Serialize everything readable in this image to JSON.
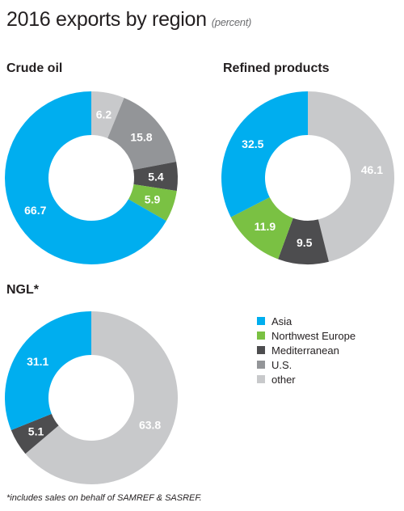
{
  "title": "2016 exports by region",
  "title_unit": "(percent)",
  "colors": {
    "Asia": "#00aeef",
    "Northwest Europe": "#7ac143",
    "Mediterranean": "#4d4d4f",
    "U.S.": "#939598",
    "other": "#c8c9cb"
  },
  "legend": [
    "Asia",
    "Northwest Europe",
    "Mediterranean",
    "U.S.",
    "other"
  ],
  "chart_data": [
    {
      "type": "pie",
      "title": "Crude oil",
      "categories": [
        "other",
        "U.S.",
        "Mediterranean",
        "Northwest Europe",
        "Asia"
      ],
      "values": [
        6.2,
        15.8,
        5.4,
        5.9,
        66.7
      ]
    },
    {
      "type": "pie",
      "title": "Refined products",
      "categories": [
        "other",
        "Mediterranean",
        "Northwest Europe",
        "Asia"
      ],
      "values": [
        46.1,
        9.5,
        11.9,
        32.5
      ]
    },
    {
      "type": "pie",
      "title": "NGL*",
      "categories": [
        "other",
        "Mediterranean",
        "Asia"
      ],
      "values": [
        63.8,
        5.1,
        31.1
      ]
    }
  ],
  "footnote": "*includes sales on behalf of SAMREF & SASREF."
}
